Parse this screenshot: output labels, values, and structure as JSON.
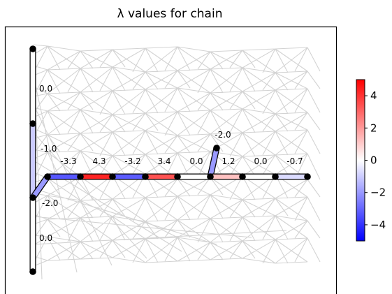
{
  "chart_data": {
    "type": "graph",
    "title": "λ values for chain",
    "colormap": "bwr",
    "colorbar": {
      "vmin": -5,
      "vmax": 5,
      "ticks": [
        4,
        2,
        0,
        -2,
        -4
      ],
      "tick_labels": [
        "4",
        "2",
        "0",
        "−2",
        "−4"
      ]
    },
    "chain_edges": [
      {
        "label": "0.0",
        "value": 0.0
      },
      {
        "label": "-1.0",
        "value": -1.0
      },
      {
        "label": "-2.0",
        "value": -2.0
      },
      {
        "label": "-3.3",
        "value": -3.3
      },
      {
        "label": "4.3",
        "value": 4.3
      },
      {
        "label": "-3.2",
        "value": -3.2
      },
      {
        "label": "3.4",
        "value": 3.4
      },
      {
        "label": "0.0",
        "value": 0.0
      },
      {
        "label": "-2.0",
        "value": -2.0
      },
      {
        "label": "1.2",
        "value": 1.2
      },
      {
        "label": "0.0",
        "value": 0.0
      },
      {
        "label": "-0.7",
        "value": -0.7
      },
      {
        "label": "0.0",
        "value": 0.0
      }
    ]
  }
}
